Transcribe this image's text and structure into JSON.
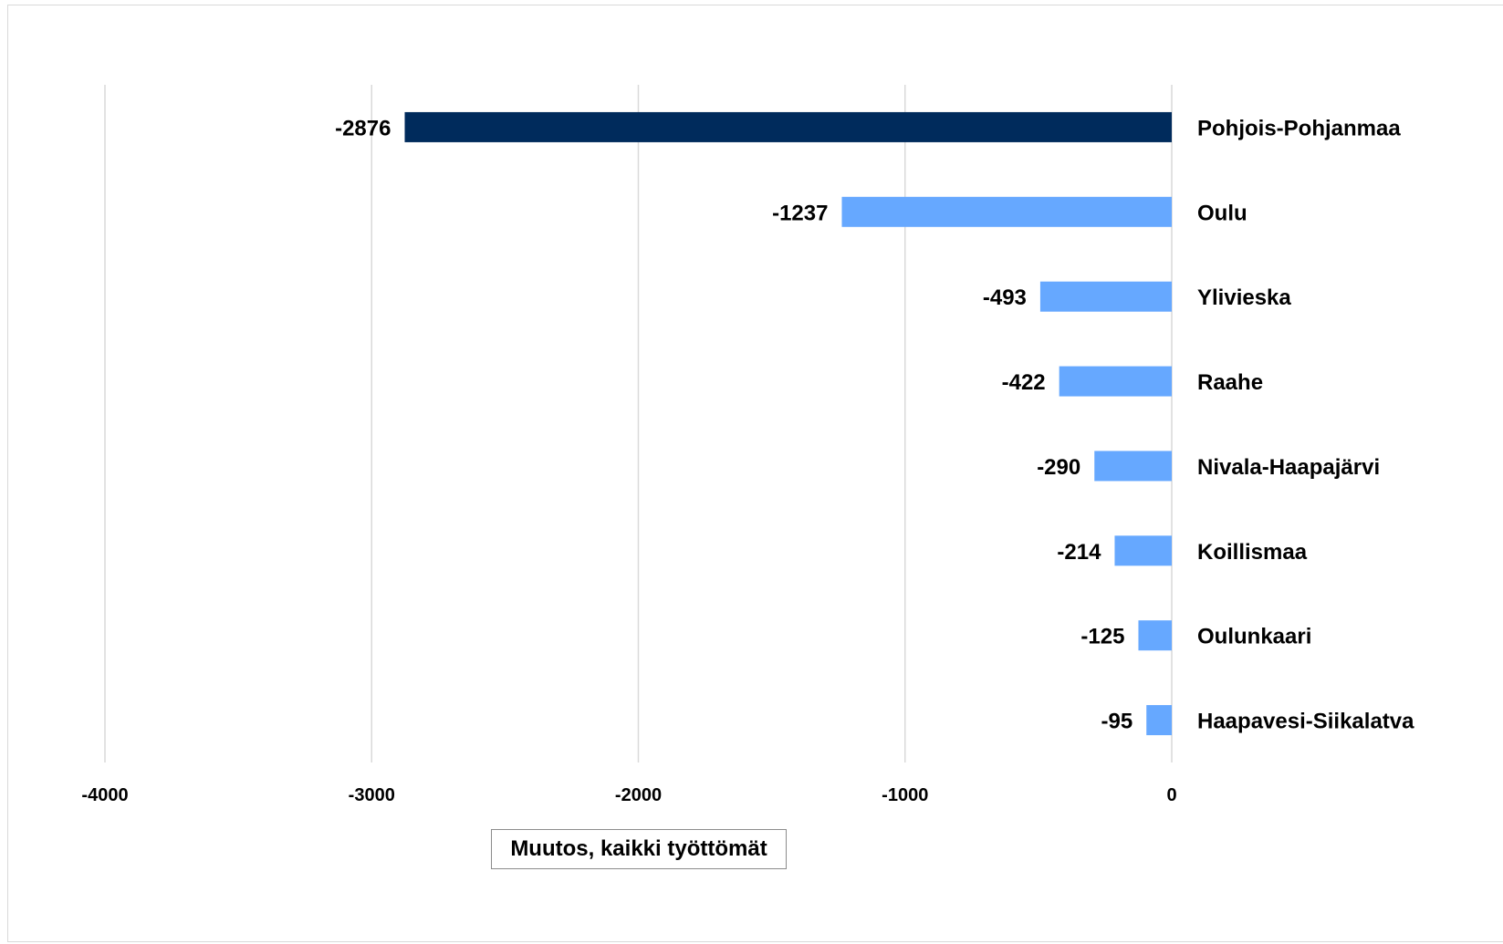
{
  "chart_data": {
    "type": "bar",
    "orientation": "horizontal",
    "categories": [
      "Pohjois-Pohjanmaa",
      "Oulu",
      "Ylivieska",
      "Raahe",
      "Nivala-Haapajärvi",
      "Koillismaa",
      "Oulunkaari",
      "Haapavesi-Siikalatva"
    ],
    "values": [
      -2876,
      -1237,
      -493,
      -422,
      -290,
      -214,
      -125,
      -95
    ],
    "colors": [
      "#002B5C",
      "#66A8FF",
      "#66A8FF",
      "#66A8FF",
      "#66A8FF",
      "#66A8FF",
      "#66A8FF",
      "#66A8FF"
    ],
    "xlim": [
      -4000,
      0
    ],
    "x_ticks": [
      -4000,
      -3000,
      -2000,
      -1000,
      0
    ],
    "xlabel": "Muutos, kaikki työttömät",
    "grid": true
  }
}
